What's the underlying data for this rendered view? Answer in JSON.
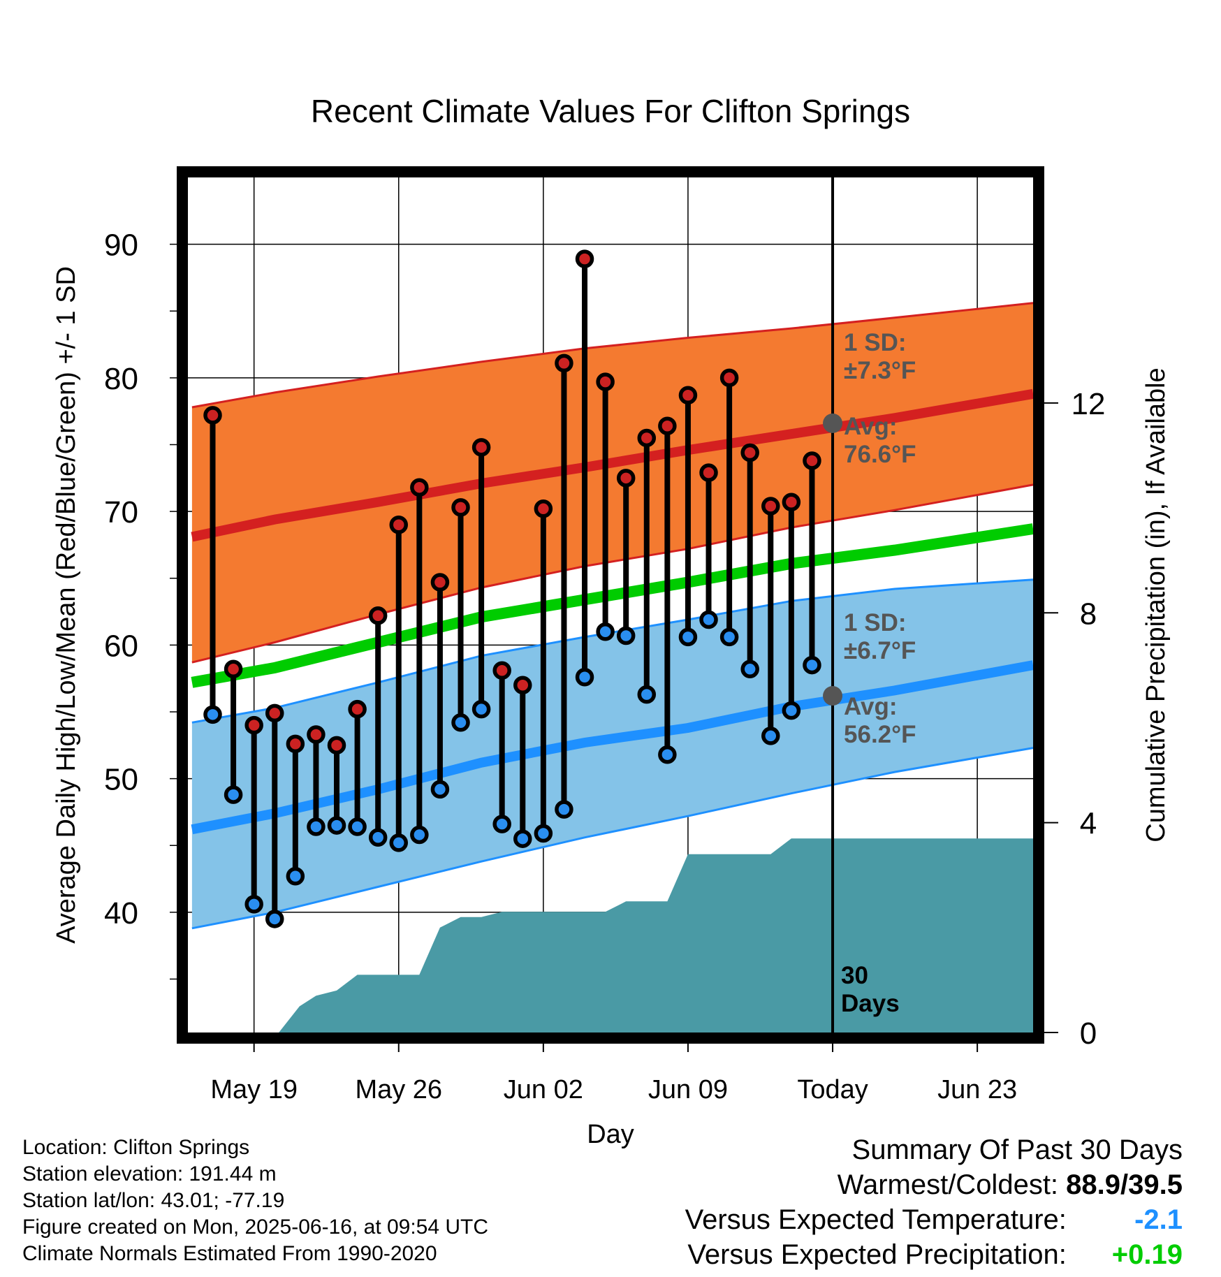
{
  "chart_data": {
    "type": "line",
    "title": "Recent Climate Values For Clifton Springs",
    "xlabel": "Day",
    "ylabel": "Average Daily High/Low/Mean (Red/Blue/Green) +/- 1 SD",
    "y2label": "Cumulative Precipitation (in), If Available",
    "ylim": [
      31,
      95
    ],
    "y2lim": [
      0,
      16.3
    ],
    "yticks": [
      "40",
      "50",
      "60",
      "70",
      "80",
      "90"
    ],
    "y2ticks": [
      "0",
      "4",
      "8",
      "12"
    ],
    "xticks": [
      "May 19",
      "May 26",
      "Jun 02",
      "Jun 09",
      "Today",
      "Jun 23"
    ],
    "xtick_days": [
      19,
      26,
      33,
      40,
      47,
      54
    ],
    "xlim": [
      15.8,
      56.7
    ],
    "grid": true,
    "today_day": 47,
    "normal_days": [
      16.0,
      20,
      25,
      30,
      35,
      40,
      45,
      50,
      56.7
    ],
    "normal_high": [
      68.1,
      69.4,
      70.7,
      72.1,
      73.3,
      74.6,
      75.8,
      77.0,
      78.8
    ],
    "normal_high_upper": [
      77.8,
      78.9,
      80.1,
      81.2,
      82.2,
      83.0,
      83.7,
      84.5,
      85.6
    ],
    "normal_high_lower": [
      58.7,
      60.2,
      62.3,
      64.3,
      65.9,
      67.2,
      68.8,
      70.1,
      72.0
    ],
    "normal_low": [
      46.2,
      47.4,
      49.2,
      51.2,
      52.7,
      53.8,
      55.4,
      56.6,
      58.5
    ],
    "normal_low_upper": [
      54.2,
      55.3,
      57.2,
      59.2,
      60.6,
      61.9,
      63.3,
      64.2,
      64.9
    ],
    "normal_low_lower": [
      38.8,
      40.0,
      41.9,
      43.8,
      45.6,
      47.2,
      48.9,
      50.5,
      52.3
    ],
    "normal_mean": [
      57.2,
      58.3,
      60.2,
      62.1,
      63.4,
      64.7,
      66.1,
      67.1,
      68.7
    ],
    "observed_days": [
      17,
      18,
      19,
      20,
      21,
      22,
      23,
      24,
      25,
      26,
      27,
      28,
      29,
      30,
      31,
      32,
      33,
      34,
      35,
      36,
      37,
      38,
      39,
      40,
      41,
      42,
      43,
      44,
      45,
      46
    ],
    "observed_high": [
      77.2,
      58.2,
      54.0,
      54.9,
      52.6,
      53.3,
      52.5,
      55.2,
      62.2,
      69.0,
      71.8,
      64.7,
      70.3,
      74.8,
      58.1,
      57.0,
      70.2,
      81.1,
      88.9,
      79.7,
      72.5,
      75.5,
      76.4,
      78.7,
      72.9,
      80.0,
      74.4,
      70.4,
      70.7,
      73.8
    ],
    "observed_low": [
      54.8,
      48.8,
      40.6,
      39.5,
      42.7,
      46.4,
      46.5,
      46.4,
      45.6,
      45.2,
      45.8,
      49.2,
      54.2,
      55.2,
      46.6,
      45.5,
      45.9,
      47.7,
      57.6,
      61.0,
      60.7,
      56.3,
      51.8,
      60.6,
      61.9,
      60.6,
      58.2,
      53.2,
      55.1,
      58.5
    ],
    "precip_days": [
      16.0,
      20.2,
      21.2,
      22.0,
      23.0,
      24.0,
      25.0,
      26.0,
      27.0,
      28.0,
      29.0,
      30.0,
      31.0,
      32.0,
      33.0,
      34.0,
      35.0,
      36.0,
      37.0,
      38.0,
      39.0,
      40.0,
      41.0,
      42.0,
      43.0,
      44.0,
      45.0,
      46.0,
      47.0,
      56.7
    ],
    "precip_values": [
      0,
      0,
      0.5,
      0.7,
      0.8,
      1.1,
      1.1,
      1.1,
      1.1,
      2.0,
      2.2,
      2.2,
      2.3,
      2.3,
      2.3,
      2.3,
      2.3,
      2.3,
      2.5,
      2.5,
      2.5,
      3.4,
      3.4,
      3.4,
      3.4,
      3.4,
      3.7,
      3.7,
      3.7,
      3.7
    ],
    "annotations": {
      "high_sd": [
        "1 SD:",
        "±7.3°F"
      ],
      "high_avg": [
        "Avg:",
        "76.6°F"
      ],
      "low_sd": [
        "1 SD:",
        "±6.7°F"
      ],
      "low_avg": [
        "Avg:",
        "56.2°F"
      ],
      "high_avg_value": 76.6,
      "low_avg_value": 56.2,
      "window": [
        "30",
        "Days"
      ]
    },
    "colors": {
      "high_band": "#f47a30",
      "high_line": "#d42020",
      "low_band": "#84c3e8",
      "low_line": "#1e90ff",
      "mean_line": "#00cc00",
      "precip": "#4a9aa5",
      "high_marker": "#cc2222",
      "low_marker": "#2a8ef0",
      "annotation": "#555555"
    }
  },
  "info": {
    "location": "Location: Clifton Springs",
    "elevation": "Station elevation: 191.44 m",
    "latlon": "Station lat/lon: 43.01; -77.19",
    "created": "Figure created on Mon, 2025-06-16, at 09:54 UTC",
    "normals": "Climate Normals Estimated From 1990-2020"
  },
  "summary": {
    "title": "Summary Of Past 30 Days",
    "warm_cold_label": "Warmest/Coldest:",
    "warm_cold_value": "88.9/39.5",
    "temp_label": "Versus Expected Temperature:",
    "temp_value": "-2.1",
    "precip_label": "Versus Expected Precipitation:",
    "precip_value": "+0.19"
  }
}
